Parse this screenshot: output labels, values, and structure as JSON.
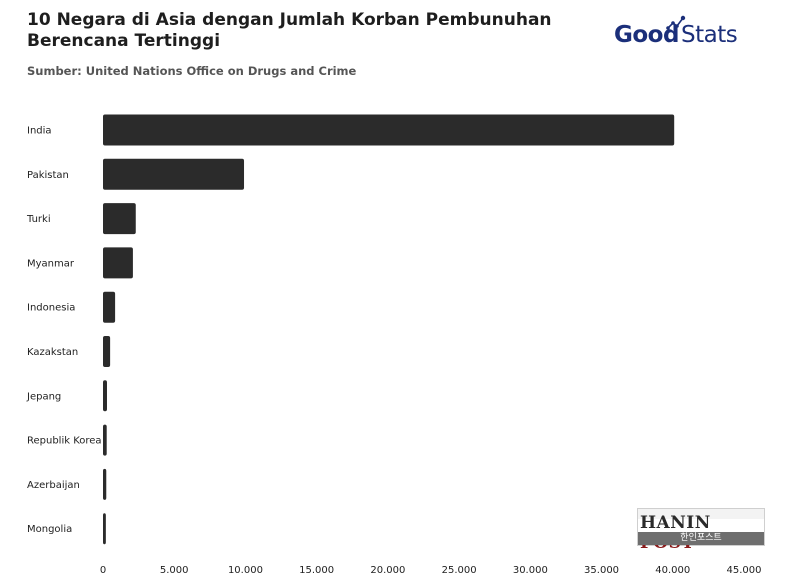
{
  "header": {
    "title": "10 Negara di Asia dengan Jumlah Korban Pembunuhan Berencana Tertinggi",
    "subtitle": "Sumber: United Nations Office on Drugs and Crime"
  },
  "logo": {
    "part1": "Good",
    "part2": "Stats",
    "color": "#1b2f7a"
  },
  "watermark": {
    "hanin": "HANIN",
    "post": "POST",
    "korean": "한인포스트"
  },
  "chart_data": {
    "type": "bar",
    "orientation": "horizontal",
    "title": "10 Negara di Asia dengan Jumlah Korban Pembunuhan Berencana Tertinggi",
    "subtitle": "Sumber: United Nations Office on Drugs and Crime",
    "xlabel": "",
    "ylabel": "",
    "categories": [
      "India",
      "Pakistan",
      "Turki",
      "Myanmar",
      "Indonesia",
      "Kazakstan",
      "Jepang",
      "Republik Korea",
      "Azerbaijan",
      "Mongolia"
    ],
    "values": [
      40100,
      9900,
      2300,
      2100,
      850,
      500,
      280,
      260,
      230,
      200
    ],
    "xlim": [
      0,
      45000
    ],
    "ticks": [
      0,
      5000,
      10000,
      15000,
      20000,
      25000,
      30000,
      35000,
      40000,
      45000
    ],
    "tick_labels": [
      "0",
      "5.000",
      "10.000",
      "15.000",
      "20.000",
      "25.000",
      "30.000",
      "35.000",
      "40.000",
      "45.000"
    ],
    "bar_color": "#2b2b2b",
    "grid": false,
    "legend": "none"
  }
}
